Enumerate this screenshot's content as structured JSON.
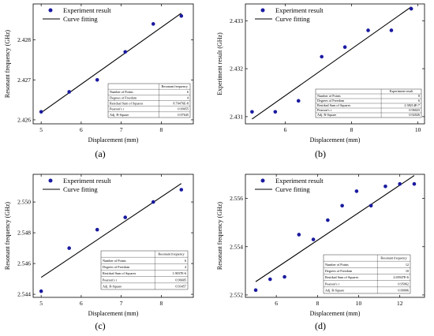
{
  "figure": {
    "marker_color": "#1a1aa0",
    "line_color": "#000000"
  },
  "chart_data": [
    {
      "panel_label": "(a)",
      "type": "scatter",
      "title": "",
      "xlabel": "Displacement (mm)",
      "ylabel": "Resonant frequency (GHz)",
      "xlim": [
        4.8,
        8.8
      ],
      "ylim": [
        2.4259,
        2.4289
      ],
      "xticks": [
        5,
        6,
        7,
        8
      ],
      "xtick_labels": [
        "5",
        "6",
        "7",
        "8"
      ],
      "yticks": [
        2.426,
        2.427,
        2.428
      ],
      "ytick_labels": [
        "2.426",
        "2.427",
        "2.428"
      ],
      "x": [
        5.0,
        5.7,
        6.4,
        7.1,
        7.8,
        8.5
      ],
      "y": [
        2.4262,
        2.4267,
        2.427,
        2.4277,
        2.4284,
        2.4286
      ],
      "fit": {
        "x": [
          5.0,
          8.5
        ],
        "y": [
          2.42618,
          2.42867
        ]
      },
      "legend": {
        "placement": "top-left",
        "entries": [
          "Experiment result",
          "Curve fitting"
        ]
      },
      "stats": {
        "header": "Resonant frequency",
        "rows": [
          [
            "Number of Points",
            "6"
          ],
          [
            "Degrees of Freedom",
            "4"
          ],
          [
            "Residual Sum of Squares",
            "8.70476E-8"
          ],
          [
            "Pearson's r",
            "0.99055"
          ],
          [
            "Adj. R-Square",
            "0.97645"
          ]
        ]
      }
    },
    {
      "panel_label": "(b)",
      "type": "scatter",
      "title": "",
      "xlabel": "Displacement (mm)",
      "ylabel": "Experiment result (GHz)",
      "xlim": [
        4.8,
        10.2
      ],
      "ylim": [
        2.43085,
        2.43335
      ],
      "xticks": [
        6,
        8,
        10
      ],
      "xtick_labels": [
        "6",
        "8",
        "10"
      ],
      "yticks": [
        2.431,
        2.432,
        2.433
      ],
      "ytick_labels": [
        "2.431",
        "2.432",
        "2.433"
      ],
      "x": [
        5.0,
        5.7,
        6.4,
        7.1,
        7.8,
        8.5,
        9.2,
        9.8
      ],
      "y": [
        2.4311,
        2.4311,
        2.43133,
        2.43225,
        2.43245,
        2.4328,
        2.4328,
        2.43325
      ],
      "fit": {
        "x": [
          5.0,
          9.8
        ],
        "y": [
          2.43095,
          2.43329
        ]
      },
      "legend": {
        "placement": "top-left",
        "entries": [
          "Experiment result",
          "Curve fitting"
        ]
      },
      "stats": {
        "header": "Experiment result",
        "rows": [
          [
            "Number of Points",
            "8"
          ],
          [
            "Degrees of Freedom",
            "6"
          ],
          [
            "Residual Sum of Squares",
            "2.38214E-7"
          ],
          [
            "Pearson's r",
            "0.96023"
          ],
          [
            "Adj. R-Square",
            "0.92026"
          ]
        ]
      }
    },
    {
      "panel_label": "(c)",
      "type": "scatter",
      "title": "",
      "xlabel": "Displacement (mm)",
      "ylabel": "Resonant frequency (GHz)",
      "xlim": [
        4.8,
        8.8
      ],
      "ylim": [
        2.5438,
        2.5518
      ],
      "xticks": [
        5,
        6,
        7,
        8
      ],
      "xtick_labels": [
        "5",
        "6",
        "7",
        "8"
      ],
      "yticks": [
        2.544,
        2.546,
        2.548,
        2.55
      ],
      "ytick_labels": [
        "2.544",
        "2.546",
        "2.548",
        "2.550"
      ],
      "x": [
        5.0,
        5.7,
        6.4,
        7.1,
        7.8,
        8.5
      ],
      "y": [
        2.5442,
        2.547,
        2.5482,
        2.549,
        2.55,
        2.5508
      ],
      "fit": {
        "x": [
          5.0,
          8.5
        ],
        "y": [
          2.5451,
          2.5512
        ]
      },
      "legend": {
        "placement": "top-left",
        "entries": [
          "Experiment result",
          "Curve fitting"
        ]
      },
      "stats": {
        "header": "Resonant frequency",
        "rows": [
          [
            "Number of Points",
            "6"
          ],
          [
            "Degrees of Freedom",
            "4"
          ],
          [
            "Residual Sum of Squares",
            "1.9037E-6"
          ],
          [
            "Pearson's r",
            "0.96605"
          ],
          [
            "Adj. R-Square",
            "0.93457"
          ]
        ]
      }
    },
    {
      "panel_label": "(d)",
      "type": "scatter",
      "title": "",
      "xlabel": "Displacement (mm)",
      "ylabel": "Resonant frequency (GHz)",
      "xlim": [
        4.5,
        13.2
      ],
      "ylim": [
        2.5519,
        2.557
      ],
      "xticks": [
        6,
        8,
        10,
        12
      ],
      "xtick_labels": [
        "6",
        "8",
        "10",
        "12"
      ],
      "yticks": [
        2.552,
        2.554,
        2.556
      ],
      "ytick_labels": [
        "2.552",
        "2.554",
        "2.556"
      ],
      "x": [
        5.0,
        5.7,
        6.4,
        7.1,
        7.8,
        8.5,
        9.2,
        9.9,
        10.6,
        11.3,
        12.0,
        12.7
      ],
      "y": [
        2.5522,
        2.55265,
        2.55275,
        2.5545,
        2.5543,
        2.5551,
        2.5557,
        2.5563,
        2.5557,
        2.5565,
        2.5566,
        2.5566
      ],
      "fit": {
        "x": [
          5.0,
          12.7
        ],
        "y": [
          2.55255,
          2.55695
        ]
      },
      "legend": {
        "placement": "top-left",
        "entries": [
          "Experiment result",
          "Curve fitting"
        ]
      },
      "stats": {
        "header": "Resonant frequency",
        "rows": [
          [
            "Number of Points",
            "12"
          ],
          [
            "Degrees of Freedom",
            "10"
          ],
          [
            "Residual Sum of Squares",
            "2.65947E-6"
          ],
          [
            "Pearson's r",
            "0.95062"
          ],
          [
            "Adj. R-Square",
            "0.90006"
          ]
        ]
      }
    }
  ]
}
